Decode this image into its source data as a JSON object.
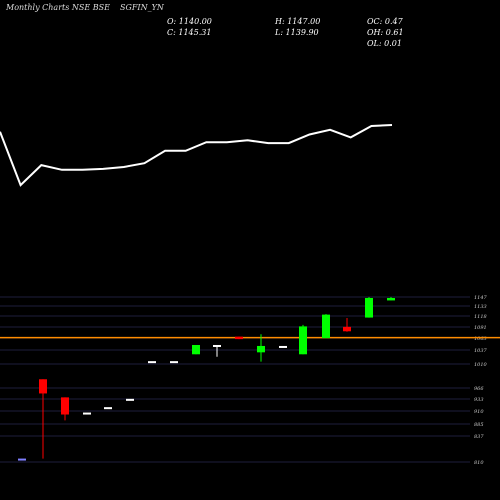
{
  "header": {
    "left": "Monthly Charts NSE BSE",
    "symbol": "SGFIN_YN"
  },
  "ohlc": {
    "open": "O: 1140.00",
    "close": "C: 1145.31",
    "high": "H: 1147.00",
    "low": "L: 1139.90",
    "oc": "OC: 0.47",
    "oh": "OH: 0.61",
    "ol": "OL: 0.01"
  },
  "colors": {
    "background": "#000000",
    "up": "#00ff00",
    "down": "#ff0000",
    "flat": "#ffffff",
    "line": "#ffffff",
    "reference": "#ff8c00",
    "grid": "#1e1e3c"
  },
  "chart_data": [
    {
      "type": "line",
      "title": "",
      "series": [
        {
          "values": [
            78,
            22,
            43,
            38,
            38,
            39,
            41,
            45,
            58,
            58,
            67,
            67,
            69,
            66,
            66,
            75,
            80,
            72,
            84,
            85
          ]
        }
      ]
    },
    {
      "type": "candlestick",
      "title": "",
      "reference_line": 1064,
      "ylim": [
        810,
        1160
      ],
      "y_ticks": [
        "1147",
        "1133",
        "1118",
        "1091",
        "1063",
        "1037",
        "1010",
        "966",
        "933",
        "910",
        "885",
        "837",
        "810"
      ],
      "candles": [
        {
          "o": 817,
          "h": 817,
          "l": 817,
          "c": 817
        },
        {
          "o": 979,
          "h": 979,
          "l": 817,
          "c": 950
        },
        {
          "o": 942,
          "h": 942,
          "l": 895,
          "c": 907
        },
        {
          "o": 911,
          "h": 911,
          "l": 911,
          "c": 911
        },
        {
          "o": 922,
          "h": 922,
          "l": 922,
          "c": 922
        },
        {
          "o": 939,
          "h": 939,
          "l": 939,
          "c": 939
        },
        {
          "o": 1016,
          "h": 1016,
          "l": 1016,
          "c": 1016
        },
        {
          "o": 1016,
          "h": 1016,
          "l": 1016,
          "c": 1016
        },
        {
          "o": 1030,
          "h": 1049,
          "l": 1030,
          "c": 1049
        },
        {
          "o": 1049,
          "h": 1049,
          "l": 1025,
          "c": 1049
        },
        {
          "o": 1066,
          "h": 1066,
          "l": 1061,
          "c": 1061
        },
        {
          "o": 1034,
          "h": 1071,
          "l": 1015,
          "c": 1047
        },
        {
          "o": 1047,
          "h": 1047,
          "l": 1047,
          "c": 1047
        },
        {
          "o": 1030,
          "h": 1090,
          "l": 1030,
          "c": 1087
        },
        {
          "o": 1063,
          "h": 1112,
          "l": 1063,
          "c": 1111
        },
        {
          "o": 1086,
          "h": 1104,
          "l": 1076,
          "c": 1077
        },
        {
          "o": 1105,
          "h": 1147,
          "l": 1105,
          "c": 1145
        },
        {
          "o": 1140,
          "h": 1147,
          "l": 1140,
          "c": 1145
        }
      ]
    }
  ]
}
